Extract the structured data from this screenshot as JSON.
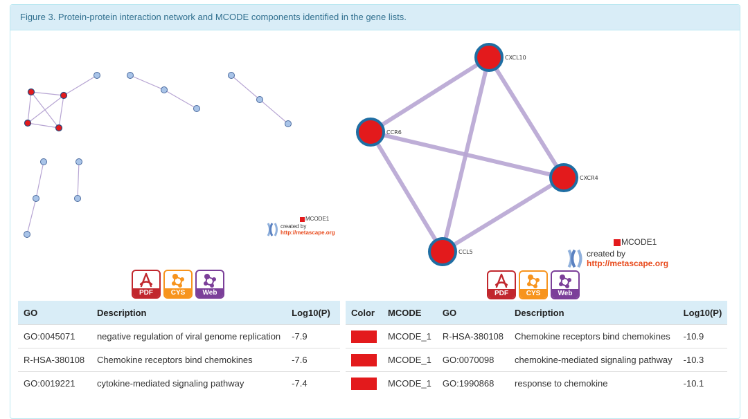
{
  "figure": {
    "caption": "Figure 3. Protein-protein interaction network and MCODE components identified in the gene lists."
  },
  "colors": {
    "mcode_red": "#e31a1c",
    "node_blue": "#a9c4e8",
    "edge_lilac": "#b7a5d3",
    "heading_bg": "#d9edf7"
  },
  "left_network": {
    "legend_label": "MCODE1",
    "created_by": "created by",
    "url": "http://metascape.org"
  },
  "right_network": {
    "nodes": [
      "CXCL10",
      "CCR6",
      "CXCR4",
      "CCL5"
    ],
    "legend_label": "MCODE1",
    "created_by": "created by",
    "url": "http://metascape.org"
  },
  "downloads": {
    "pdf_label": "PDF",
    "cys_label": "CYS",
    "web_label": "Web"
  },
  "left_table": {
    "headers": [
      "GO",
      "Description",
      "Log10(P)"
    ],
    "rows": [
      [
        "GO:0045071",
        "negative regulation of viral genome replication",
        "-7.9"
      ],
      [
        "R-HSA-380108",
        "Chemokine receptors bind chemokines",
        "-7.6"
      ],
      [
        "GO:0019221",
        "cytokine-mediated signaling pathway",
        "-7.4"
      ]
    ]
  },
  "right_table": {
    "headers": [
      "Color",
      "MCODE",
      "GO",
      "Description",
      "Log10(P)"
    ],
    "rows": [
      [
        "",
        "MCODE_1",
        "R-HSA-380108",
        "Chemokine receptors bind chemokines",
        "-10.9"
      ],
      [
        "",
        "MCODE_1",
        "GO:0070098",
        "chemokine-mediated signaling pathway",
        "-10.3"
      ],
      [
        "",
        "MCODE_1",
        "GO:1990868",
        "response to chemokine",
        "-10.1"
      ]
    ]
  }
}
